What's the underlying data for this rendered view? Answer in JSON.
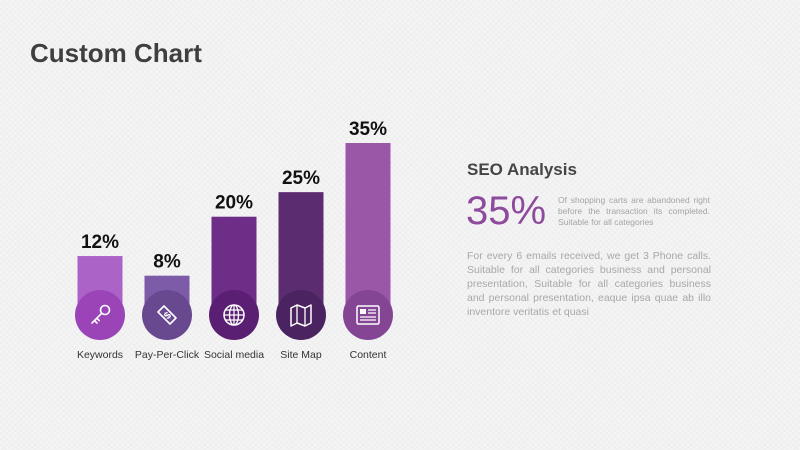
{
  "title": "Custom Chart",
  "chart_data": {
    "type": "bar",
    "categories": [
      "Keywords",
      "Pay-Per-Click",
      "Social media",
      "Site Map",
      "Content"
    ],
    "values": [
      12,
      8,
      20,
      25,
      35
    ],
    "value_labels": [
      "12%",
      "8%",
      "20%",
      "25%",
      "35%"
    ],
    "icons": [
      "key-icon",
      "dollar-tag-icon",
      "globe-icon",
      "map-icon",
      "newspaper-icon"
    ],
    "bar_colors": [
      "#ac63c8",
      "#7d5ba8",
      "#6e2d87",
      "#5b2c70",
      "#9a56a7"
    ],
    "icon_colors": [
      "#9b44b7",
      "#68488f",
      "#5a1f72",
      "#4b2360",
      "#844595"
    ]
  },
  "seo": {
    "heading": "SEO Analysis",
    "big_percent": "35%",
    "small_text": "Of shopping carts are abandoned right before the transaction its completed. Suitable for all categories",
    "paragraph": "For every 6 emails received, we get 3 Phone calls. Suitable for all categories business and personal presentation, Suitable for all categories business and personal presentation, eaque ipsa quae ab illo inventore veritatis et quasi"
  }
}
